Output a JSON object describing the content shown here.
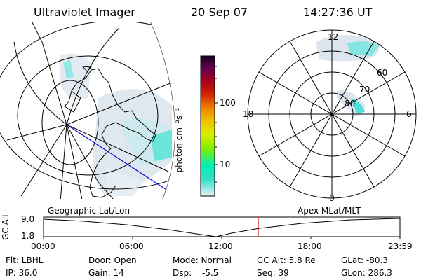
{
  "header": {
    "title": "Ultraviolet Imager",
    "date": "20 Sep 07",
    "time": "14:27:36 UT"
  },
  "colorbar": {
    "label": "photon cm⁻²s⁻¹",
    "ticks": [
      "100",
      "10"
    ]
  },
  "geo_map": {
    "caption": "Geographic Lat/Lon"
  },
  "polar_plot": {
    "caption": "Apex MLat/MLT",
    "mlt_labels": [
      "12",
      "18",
      "6",
      "0"
    ],
    "mlat_labels": [
      "60",
      "70",
      "80"
    ]
  },
  "timeline": {
    "ylabel": "GC Alt",
    "yticks": [
      "9.0",
      "1.8"
    ],
    "xticks": [
      "00:00",
      "06:00",
      "12:00",
      "18:00",
      "23:59"
    ],
    "marker_time_fraction": 0.6025
  },
  "status": {
    "col1": [
      "Flt: LBHL",
      "IP: 36.0"
    ],
    "col2": [
      "Door: Open",
      "Gain: 14"
    ],
    "col3a": [
      "Mode: Normal",
      "Dsp:"
    ],
    "dsp_value": "-5.5",
    "col4": [
      "GC Alt: 5.8 Re",
      "Seq: 39"
    ],
    "col5": [
      "GLat: -80.3",
      "GLon: 286.3"
    ]
  },
  "colors": {
    "marker": "#cc0000",
    "ground_track": "#0000cc",
    "colorbar_stops": [
      "#e8f0f8",
      "#30e0c8",
      "#00f0b0",
      "#80f000",
      "#d8f000",
      "#f0c000",
      "#f08000",
      "#d02000",
      "#a00020",
      "#600050",
      "#100020"
    ]
  }
}
